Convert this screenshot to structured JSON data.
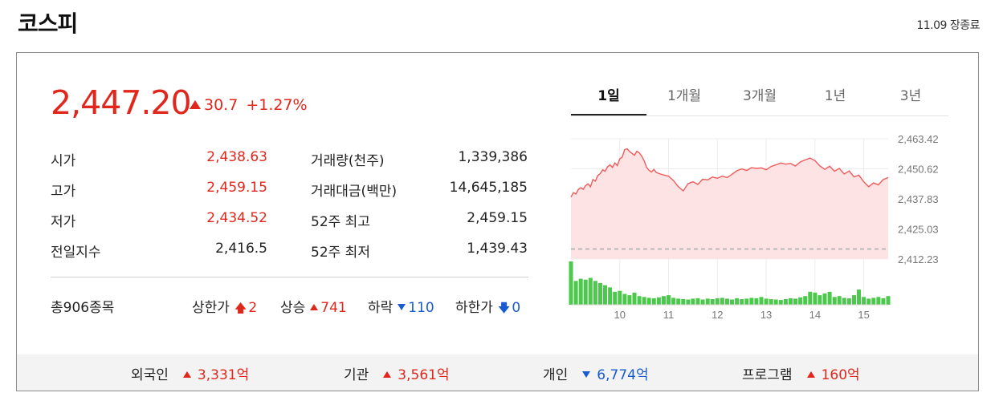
{
  "header": {
    "title": "코스피",
    "status": "11.09 장종료"
  },
  "quote": {
    "price": "2,447.20",
    "change": "30.7",
    "change_pct": "+1.27%"
  },
  "stats": [
    {
      "label": "시가",
      "value": "2,438.63"
    },
    {
      "label": "고가",
      "value": "2,459.15"
    },
    {
      "label": "저가",
      "value": "2,434.52"
    },
    {
      "label": "전일지수",
      "value": "2,416.5"
    }
  ],
  "stats2": [
    {
      "label": "거래량(천주)",
      "value": "1,339,386"
    },
    {
      "label": "거래대금(백만)",
      "value": "14,645,185"
    },
    {
      "label": "52주 최고",
      "value": "2,459.15"
    },
    {
      "label": "52주 최저",
      "value": "1,439.43"
    }
  ],
  "stocks": {
    "total": "총906종목",
    "upper_limit_label": "상한가",
    "upper_limit": "2",
    "rise_label": "상승",
    "rise": "741",
    "fall_label": "하락",
    "fall": "110",
    "lower_limit_label": "하한가",
    "lower_limit": "0"
  },
  "tabs": [
    "1일",
    "1개월",
    "3개월",
    "1년",
    "3년"
  ],
  "active_tab": "1일",
  "investors": [
    {
      "label": "외국인",
      "value": "3,331억",
      "dir": "up"
    },
    {
      "label": "기관",
      "value": "3,561억",
      "dir": "up"
    },
    {
      "label": "개인",
      "value": "6,774억",
      "dir": "down"
    },
    {
      "label": "프로그램",
      "value": "160억",
      "dir": "up"
    }
  ],
  "colors": {
    "up": "#e1261c",
    "down": "#1a5bd1",
    "line": "#f05a5a",
    "area": "#fde3e3",
    "volume": "#4cc94c"
  },
  "chart_data": {
    "type": "line",
    "x_ticks": [
      "10",
      "11",
      "12",
      "13",
      "14",
      "15"
    ],
    "y_ticks": [
      "2,463.42",
      "2,450.62",
      "2,437.83",
      "2,425.03",
      "2,412.23"
    ],
    "ylim": [
      2412.23,
      2463.42
    ],
    "baseline": 2416.5,
    "x_range": [
      9.0,
      15.5
    ],
    "price_series": {
      "x": [
        9.0,
        9.05,
        9.1,
        9.15,
        9.2,
        9.25,
        9.3,
        9.35,
        9.4,
        9.45,
        9.5,
        9.55,
        9.6,
        9.65,
        9.7,
        9.75,
        9.8,
        9.85,
        9.9,
        9.95,
        10.0,
        10.05,
        10.1,
        10.15,
        10.2,
        10.25,
        10.3,
        10.35,
        10.4,
        10.45,
        10.5,
        10.55,
        10.6,
        10.65,
        10.7,
        10.75,
        10.8,
        10.9,
        11.0,
        11.1,
        11.2,
        11.3,
        11.4,
        11.5,
        11.6,
        11.7,
        11.8,
        11.9,
        12.0,
        12.1,
        12.2,
        12.3,
        12.4,
        12.5,
        12.6,
        12.7,
        12.8,
        12.9,
        13.0,
        13.1,
        13.2,
        13.3,
        13.4,
        13.5,
        13.6,
        13.7,
        13.8,
        13.9,
        14.0,
        14.1,
        14.2,
        14.3,
        14.4,
        14.5,
        14.6,
        14.7,
        14.8,
        14.9,
        15.0,
        15.1,
        15.2,
        15.3,
        15.4,
        15.5
      ],
      "values": [
        2438.6,
        2440.5,
        2439.9,
        2441.8,
        2442.6,
        2441.9,
        2443.5,
        2444.2,
        2443.0,
        2446.1,
        2445.4,
        2447.8,
        2448.6,
        2450.2,
        2449.6,
        2451.5,
        2452.3,
        2451.2,
        2453.1,
        2452.0,
        2454.9,
        2455.6,
        2458.8,
        2459.15,
        2458.0,
        2457.2,
        2456.4,
        2458.1,
        2457.4,
        2456.0,
        2454.0,
        2451.2,
        2450.0,
        2449.3,
        2450.4,
        2449.1,
        2448.6,
        2448.0,
        2447.5,
        2445.6,
        2443.0,
        2441.2,
        2444.3,
        2445.1,
        2444.0,
        2446.2,
        2445.9,
        2447.1,
        2446.6,
        2447.5,
        2446.9,
        2448.3,
        2449.8,
        2450.6,
        2449.9,
        2451.1,
        2450.8,
        2451.0,
        2450.2,
        2451.6,
        2452.3,
        2453.1,
        2452.6,
        2452.9,
        2451.8,
        2453.6,
        2454.4,
        2455.2,
        2454.1,
        2451.9,
        2450.4,
        2451.7,
        2449.6,
        2450.8,
        2448.4,
        2449.7,
        2447.2,
        2447.9,
        2445.1,
        2443.0,
        2444.6,
        2443.8,
        2446.1,
        2446.9
      ]
    },
    "volume_series": {
      "x": [
        9.0,
        9.1,
        9.2,
        9.3,
        9.4,
        9.5,
        9.6,
        9.7,
        9.8,
        9.9,
        10.0,
        10.1,
        10.2,
        10.3,
        10.4,
        10.5,
        10.6,
        10.7,
        10.8,
        10.9,
        11.0,
        11.1,
        11.2,
        11.3,
        11.4,
        11.5,
        11.6,
        11.7,
        11.8,
        11.9,
        12.0,
        12.1,
        12.2,
        12.3,
        12.4,
        12.5,
        12.6,
        12.7,
        12.8,
        12.9,
        13.0,
        13.1,
        13.2,
        13.3,
        13.4,
        13.5,
        13.6,
        13.7,
        13.8,
        13.9,
        14.0,
        14.1,
        14.2,
        14.3,
        14.4,
        14.5,
        14.6,
        14.7,
        14.8,
        14.9,
        15.0,
        15.1,
        15.2,
        15.3,
        15.4,
        15.5
      ],
      "values": [
        100,
        55,
        60,
        58,
        62,
        55,
        50,
        45,
        40,
        30,
        32,
        25,
        22,
        28,
        20,
        18,
        16,
        15,
        17,
        20,
        22,
        16,
        14,
        13,
        12,
        14,
        15,
        12,
        14,
        13,
        15,
        16,
        14,
        12,
        15,
        13,
        14,
        16,
        15,
        18,
        14,
        13,
        12,
        11,
        13,
        15,
        14,
        17,
        20,
        30,
        28,
        22,
        26,
        30,
        18,
        20,
        16,
        15,
        22,
        35,
        18,
        14,
        16,
        18,
        15,
        20
      ]
    },
    "grid": true,
    "legend": "none"
  }
}
